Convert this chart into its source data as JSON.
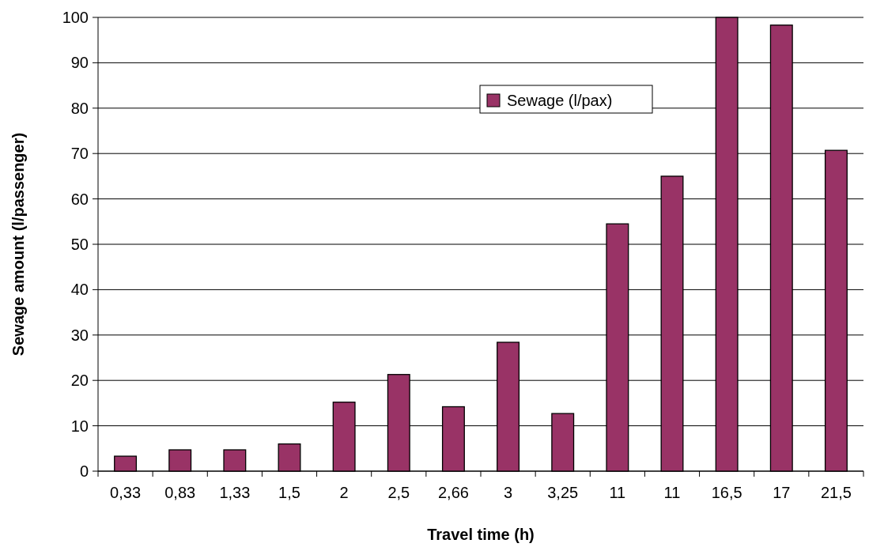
{
  "chart_data": {
    "type": "bar",
    "xlabel": "Travel time (h)",
    "ylabel": "Sewage amount (l/passenger)",
    "categories": [
      "0,33",
      "0,83",
      "1,33",
      "1,5",
      "2",
      "2,5",
      "2,66",
      "3",
      "3,25",
      "11",
      "11",
      "16,5",
      "17",
      "21,5"
    ],
    "series": [
      {
        "name": "Sewage (l/pax)",
        "color": "#993366",
        "values": [
          3.3,
          4.7,
          4.7,
          6.0,
          15.2,
          21.3,
          14.2,
          28.4,
          12.7,
          54.5,
          65.0,
          100,
          98.3,
          70.7
        ]
      }
    ],
    "ylim": [
      0,
      100
    ],
    "yticks": [
      0,
      10,
      20,
      30,
      40,
      50,
      60,
      70,
      80,
      90,
      100
    ],
    "grid": "y",
    "legend": "top right"
  }
}
